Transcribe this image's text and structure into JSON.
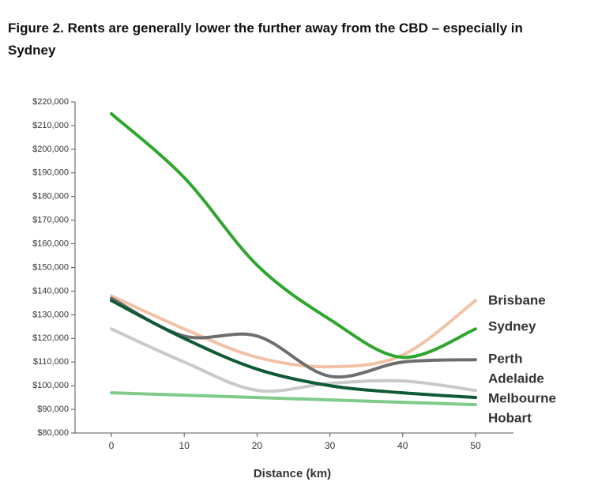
{
  "chart_data": {
    "type": "line",
    "title": "Figure 2. Rents are generally lower the further away from the CBD – especially in Sydney",
    "xlabel": "Distance (km)",
    "x": [
      0,
      10,
      20,
      30,
      40,
      50
    ],
    "xlim": [
      -5,
      55
    ],
    "xticks": [
      0,
      10,
      20,
      30,
      40,
      50
    ],
    "ylim": [
      80000,
      220000
    ],
    "yticks": [
      {
        "value": 80000,
        "label": "$80,000"
      },
      {
        "value": 90000,
        "label": "$90,000"
      },
      {
        "value": 100000,
        "label": "$100,000"
      },
      {
        "value": 110000,
        "label": "$110,000"
      },
      {
        "value": 120000,
        "label": "$120,000"
      },
      {
        "value": 130000,
        "label": "$130,000"
      },
      {
        "value": 140000,
        "label": "$140,000"
      },
      {
        "value": 150000,
        "label": "$150,000"
      },
      {
        "value": 160000,
        "label": "$160,000"
      },
      {
        "value": 170000,
        "label": "$170,000"
      },
      {
        "value": 180000,
        "label": "$180,000"
      },
      {
        "value": 190000,
        "label": "$190,000"
      },
      {
        "value": 200000,
        "label": "$200,000"
      },
      {
        "value": 210000,
        "label": "$210,000"
      },
      {
        "value": 220000,
        "label": "$220,000"
      }
    ],
    "series": [
      {
        "name": "Brisbane",
        "color": "#f2c2a5",
        "values": [
          138000,
          124000,
          112000,
          108000,
          113000,
          136000
        ]
      },
      {
        "name": "Sydney",
        "color": "#2ea62e",
        "values": [
          215000,
          188000,
          151000,
          128000,
          112000,
          124000
        ]
      },
      {
        "name": "Perth",
        "color": "#6e6e6e",
        "values": [
          137000,
          121000,
          121000,
          104000,
          110000,
          111000
        ]
      },
      {
        "name": "Adelaide",
        "color": "#c9c9c9",
        "values": [
          124000,
          110000,
          98000,
          101000,
          102000,
          98000
        ]
      },
      {
        "name": "Melbourne",
        "color": "#0f5a36",
        "values": [
          136000,
          120000,
          107000,
          100000,
          97000,
          95000
        ]
      },
      {
        "name": "Hobart",
        "color": "#7fcb8a",
        "values": [
          97000,
          96000,
          95000,
          94000,
          93000,
          92000
        ]
      }
    ]
  }
}
